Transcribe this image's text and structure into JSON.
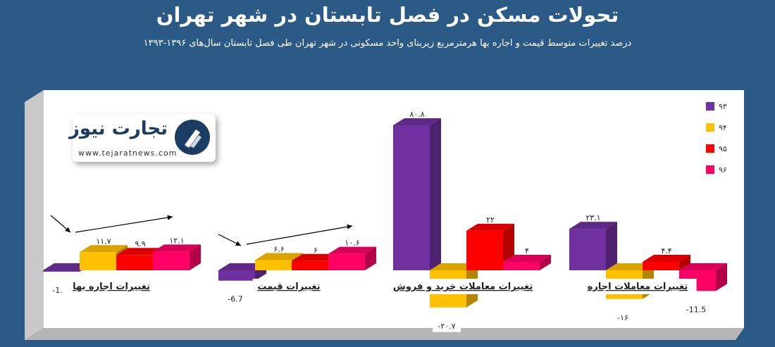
{
  "title": "تحولات مسکن در فصل تابستان در شهر تهران",
  "subtitle": "درصد تغییرات متوسط قیمت و اجاره بها هرمترمربع زیربنای واحد مسکونی در شهر تهران طی فصل تابستان سال‌های ۱۳۹۶-۱۳۹۳",
  "logo": {
    "text": "تجارت نیوز",
    "url": "www.tejaratnews.com"
  },
  "colors": {
    "background": "#2b5a86",
    "s93": "#7030a0",
    "s94": "#ffc000",
    "s95": "#ff0000",
    "s96": "#ff0066"
  },
  "chart_data": {
    "type": "bar",
    "categories": [
      "تغییرات اجاره بها",
      "تغییرات قیمت",
      "تغییرات معاملات خرید و فروش",
      "تغییرات معاملات اجاره"
    ],
    "series": [
      {
        "name": "۹۳",
        "values": [
          -1.1,
          -6.7,
          80.8,
          23.1
        ],
        "labels": [
          "-1.1",
          "-6.7",
          "۸۰.۸",
          "۲۳.۱"
        ]
      },
      {
        "name": "۹۴",
        "values": [
          11.7,
          6.6,
          -20.7,
          -16
        ],
        "labels": [
          "۱۱.۷",
          "۶.۶",
          "-۲۰.۷",
          "-۱۶"
        ]
      },
      {
        "name": "۹۵",
        "values": [
          9.9,
          6,
          22,
          4.4
        ],
        "labels": [
          "۹.۹",
          "۶",
          "۲۲",
          "۴.۴"
        ]
      },
      {
        "name": "۹۶",
        "values": [
          12.1,
          10.6,
          4,
          -11.5
        ],
        "labels": [
          "۱۲.۱",
          "۱۰.۶",
          "۴",
          "-11.5"
        ]
      }
    ],
    "legend_position": "top-right",
    "grid": false
  }
}
